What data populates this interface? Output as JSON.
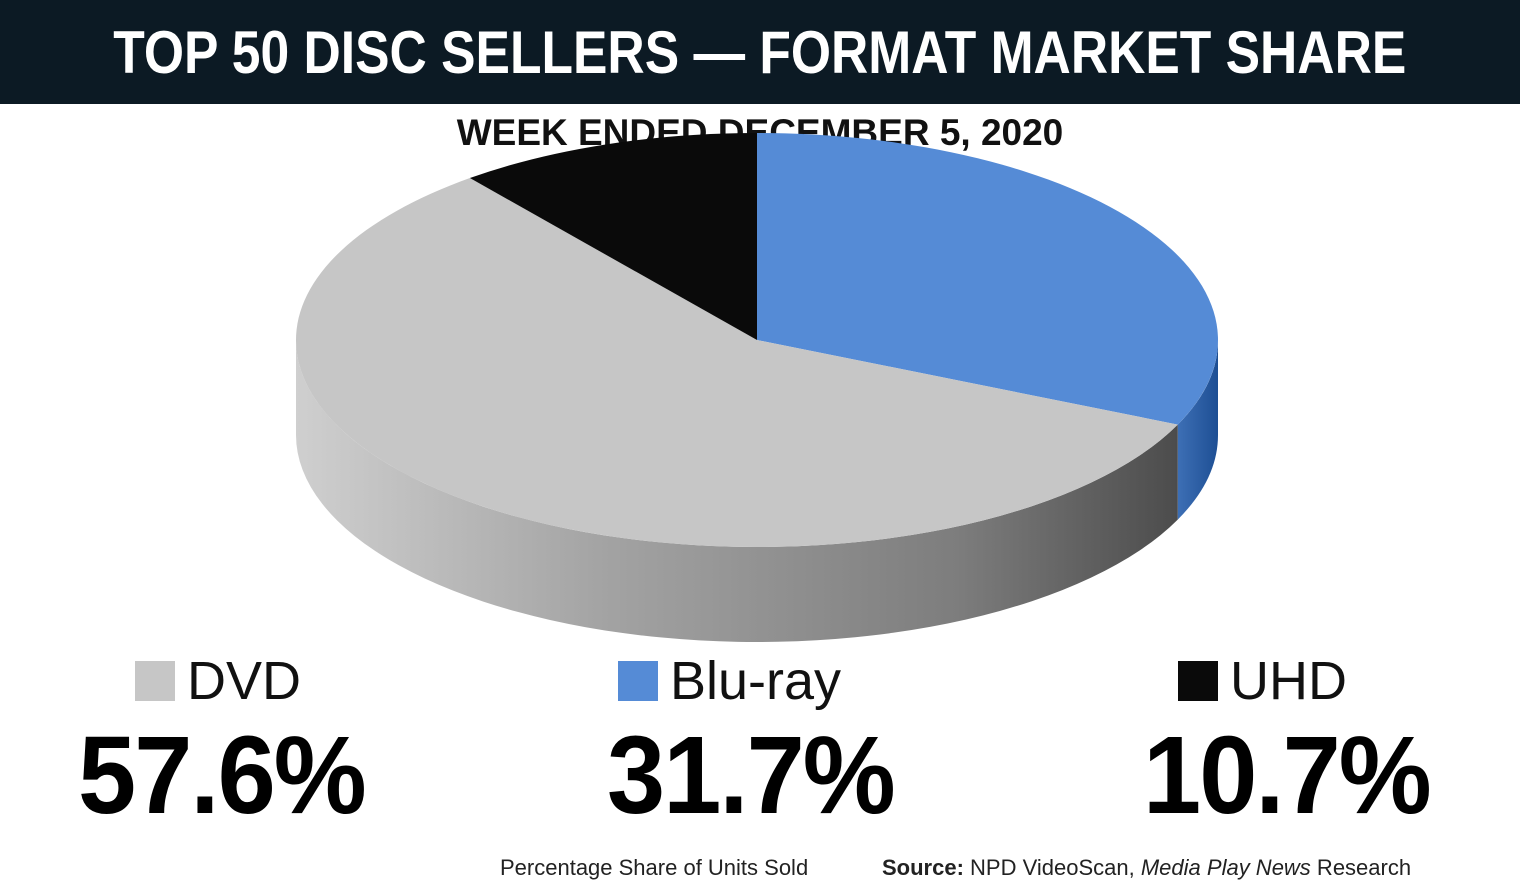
{
  "header": {
    "title": "TOP 50 DISC SELLERS — FORMAT MARKET SHARE",
    "subtitle": "WEEK ENDED DECEMBER 5, 2020"
  },
  "chart_data": {
    "type": "pie",
    "title": "TOP 50 DISC SELLERS — FORMAT MARKET SHARE",
    "subtitle": "WEEK ENDED DECEMBER 5, 2020",
    "slices": [
      {
        "name": "DVD",
        "value": 57.6,
        "label": "57.6%",
        "color": "#c6c6c6"
      },
      {
        "name": "Blu-ray",
        "value": 31.7,
        "label": "31.7%",
        "color": "#558bd6"
      },
      {
        "name": "UHD",
        "value": 10.7,
        "label": "10.7%",
        "color": "#0a0a0a"
      }
    ],
    "style": "3d-perspective"
  },
  "footer": {
    "caption": "Percentage Share of Units Sold",
    "source_label": "Source:",
    "source_text_a": "NPD VideoScan, ",
    "source_text_italic": "Media Play News",
    "source_text_b": " Research"
  }
}
